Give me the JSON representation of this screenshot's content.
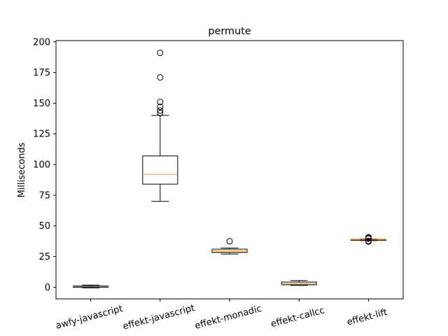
{
  "chart_data": {
    "type": "box",
    "title": "permute",
    "xlabel": "",
    "ylabel": "Milliseconds",
    "ylim": [
      -9.5,
      201
    ],
    "yticks": [
      0,
      25,
      50,
      75,
      100,
      125,
      150,
      175,
      200
    ],
    "grid": false,
    "categories": [
      "awfy-javascript",
      "effekt-javascript",
      "effekt-monadic",
      "effekt-callcc",
      "effekt-lift"
    ],
    "boxes": [
      {
        "whisker_low": -0.5,
        "q1": 0.0,
        "median": 0.5,
        "q3": 1.0,
        "whisker_high": 1.8,
        "outliers": []
      },
      {
        "whisker_low": 70,
        "q1": 84,
        "median": 92,
        "q3": 107,
        "whisker_high": 140,
        "outliers": [
          142,
          144,
          147,
          151,
          171,
          191
        ]
      },
      {
        "whisker_low": 27,
        "q1": 28.3,
        "median": 29.5,
        "q3": 31,
        "whisker_high": 32,
        "outliers": [
          37.5
        ]
      },
      {
        "whisker_low": 1.5,
        "q1": 2.0,
        "median": 3.0,
        "q3": 4.2,
        "whisker_high": 5.5,
        "outliers": []
      },
      {
        "whisker_low": 38,
        "q1": 38.2,
        "median": 38.6,
        "q3": 38.9,
        "whisker_high": 39.1,
        "outliers": [
          37.2,
          37.8,
          39.6,
          40.2,
          40.8
        ]
      }
    ],
    "colors": {
      "box": "#000000",
      "median": "#ff7f0e",
      "outlier": "#000000"
    }
  }
}
